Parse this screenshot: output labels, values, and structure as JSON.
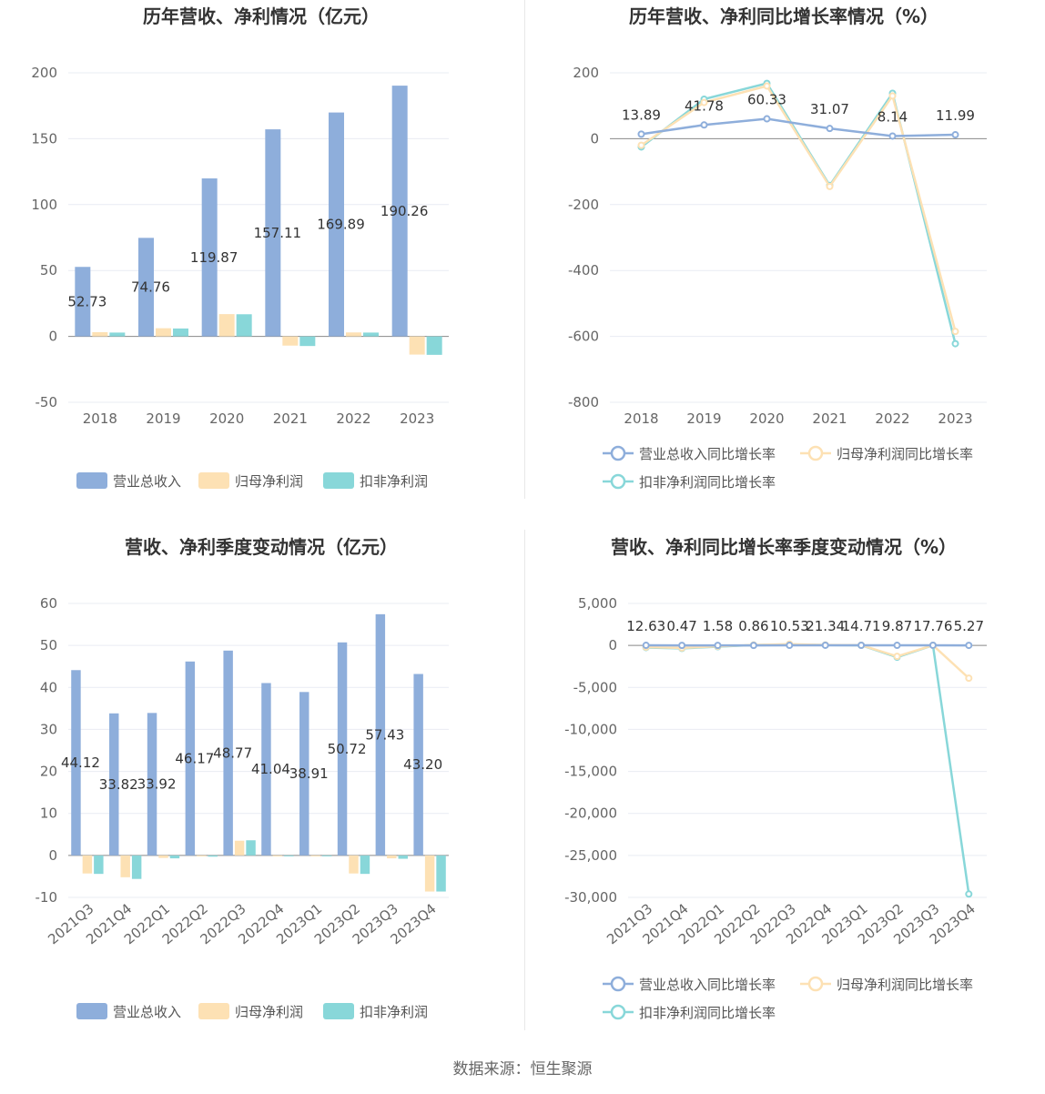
{
  "colors": {
    "revenue": "#8eaedb",
    "parent_profit": "#fde1b4",
    "deducted_profit": "#88d7d9",
    "grid": "#e9ecf3",
    "axis": "#666666"
  },
  "footer": {
    "source": "数据来源：恒生聚源"
  },
  "chart_data": [
    {
      "type": "bar",
      "title": "历年营收、净利情况（亿元）",
      "categories": [
        "2018",
        "2019",
        "2020",
        "2021",
        "2022",
        "2023"
      ],
      "ylim": [
        -50,
        200
      ],
      "yticks": [
        200,
        150,
        100,
        50,
        0,
        -50
      ],
      "grid": true,
      "legend_position": "bottom",
      "series": [
        {
          "name": "营业总收入",
          "values": [
            52.73,
            74.76,
            119.87,
            157.11,
            169.89,
            190.26
          ],
          "labels": [
            "52.73",
            "74.76",
            "119.87",
            "157.11",
            "169.89",
            "190.26"
          ]
        },
        {
          "name": "归母净利润",
          "values": [
            3.2,
            6.2,
            16.9,
            -7.0,
            3.0,
            -13.8
          ]
        },
        {
          "name": "扣非净利润",
          "values": [
            2.9,
            6.0,
            16.8,
            -7.3,
            2.9,
            -14.0
          ]
        }
      ]
    },
    {
      "type": "line",
      "title": "历年营收、净利同比增长率情况（%）",
      "categories": [
        "2018",
        "2019",
        "2020",
        "2021",
        "2022",
        "2023"
      ],
      "ylim": [
        -800,
        200
      ],
      "yticks": [
        200,
        0,
        -200,
        -400,
        -600,
        -800
      ],
      "grid": true,
      "legend_position": "bottom",
      "series": [
        {
          "name": "营业总收入同比增长率",
          "values": [
            13.89,
            41.78,
            60.33,
            31.07,
            8.14,
            11.99
          ],
          "labels": [
            "13.89",
            "41.78",
            "60.33",
            "31.07",
            "8.14",
            "11.99"
          ]
        },
        {
          "name": "归母净利润同比增长率",
          "values": [
            -20,
            110,
            160,
            -145,
            130,
            -585
          ]
        },
        {
          "name": "扣非净利润同比增长率",
          "values": [
            -25,
            120,
            168,
            -142,
            138,
            -622
          ]
        }
      ]
    },
    {
      "type": "bar",
      "title": "营收、净利季度变动情况（亿元）",
      "categories": [
        "2021Q3",
        "2021Q4",
        "2022Q1",
        "2022Q2",
        "2022Q3",
        "2022Q4",
        "2023Q1",
        "2023Q2",
        "2023Q3",
        "2023Q4"
      ],
      "ylim": [
        -10,
        60
      ],
      "yticks": [
        60,
        50,
        40,
        30,
        20,
        10,
        0,
        -10
      ],
      "grid": true,
      "legend_position": "bottom",
      "series": [
        {
          "name": "营业总收入",
          "values": [
            44.12,
            33.82,
            33.92,
            46.17,
            48.77,
            41.04,
            38.91,
            50.72,
            57.43,
            43.2
          ],
          "labels": [
            "44.12",
            "33.82",
            "33.92",
            "46.17",
            "48.77",
            "41.04",
            "38.91",
            "50.72",
            "57.43",
            "43.20"
          ]
        },
        {
          "name": "归母净利润",
          "values": [
            -4.3,
            -5.2,
            -0.6,
            -0.2,
            3.5,
            -0.2,
            -0.2,
            -4.3,
            -0.7,
            -8.6
          ]
        },
        {
          "name": "扣非净利润",
          "values": [
            -4.4,
            -5.6,
            -0.7,
            -0.3,
            3.6,
            -0.2,
            -0.2,
            -4.4,
            -0.8,
            -8.6
          ]
        }
      ]
    },
    {
      "type": "line",
      "title": "营收、净利同比增长率季度变动情况（%）",
      "categories": [
        "2021Q3",
        "2021Q4",
        "2022Q1",
        "2022Q2",
        "2022Q3",
        "2022Q4",
        "2023Q1",
        "2023Q2",
        "2023Q3",
        "2023Q4"
      ],
      "ylim": [
        -30000,
        5000
      ],
      "yticks": [
        5000,
        0,
        -5000,
        -10000,
        -15000,
        -20000,
        -25000,
        -30000
      ],
      "ytick_labels": [
        "5,000",
        "0",
        "-5,000",
        "-10,000",
        "-15,000",
        "-20,000",
        "-25,000",
        "-30,000"
      ],
      "grid": true,
      "legend_position": "bottom",
      "series": [
        {
          "name": "营业总收入同比增长率",
          "values": [
            12.63,
            0.47,
            1.58,
            0.86,
            10.53,
            21.34,
            14.71,
            9.87,
            17.76,
            5.27
          ],
          "labels": [
            "12.63",
            "0.47",
            "1.58",
            "0.86",
            "10.53",
            "21.34",
            "14.71",
            "9.87",
            "17.76",
            "5.27"
          ]
        },
        {
          "name": "归母净利润同比增长率",
          "values": [
            -200,
            -300,
            -100,
            50,
            150,
            50,
            30,
            -1300,
            20,
            -3900
          ]
        },
        {
          "name": "扣非净利润同比增长率",
          "values": [
            -250,
            -350,
            -150,
            40,
            120,
            40,
            20,
            -1400,
            10,
            -29600
          ]
        }
      ]
    }
  ]
}
